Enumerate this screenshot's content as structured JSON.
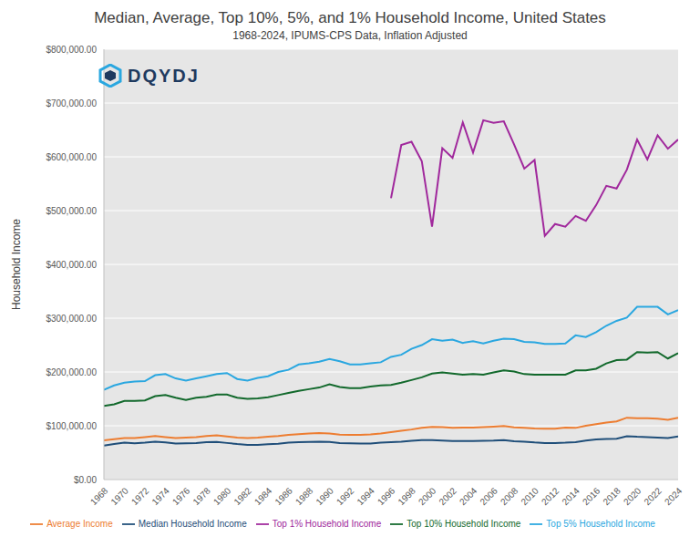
{
  "chart_data": {
    "type": "line",
    "title": "Median, Average, Top 10%, 5%, and 1% Household Income, United States",
    "subtitle": "1968-2024, IPUMS-CPS Data, Inflation Adjusted",
    "y_label": "Household Income",
    "annotations": [
      "DQYDJ"
    ],
    "x": [
      1968,
      1969,
      1970,
      1971,
      1972,
      1973,
      1974,
      1975,
      1976,
      1977,
      1978,
      1979,
      1980,
      1981,
      1982,
      1983,
      1984,
      1985,
      1986,
      1987,
      1988,
      1989,
      1990,
      1991,
      1992,
      1993,
      1994,
      1995,
      1996,
      1997,
      1998,
      1999,
      2000,
      2001,
      2002,
      2003,
      2004,
      2005,
      2006,
      2007,
      2008,
      2009,
      2010,
      2011,
      2012,
      2013,
      2014,
      2015,
      2016,
      2017,
      2018,
      2019,
      2020,
      2021,
      2022,
      2023,
      2024
    ],
    "xlim": [
      1968,
      2024
    ],
    "xticks": [
      1968,
      1970,
      1972,
      1974,
      1976,
      1978,
      1980,
      1982,
      1984,
      1986,
      1988,
      1990,
      1992,
      1994,
      1996,
      1998,
      2000,
      2002,
      2004,
      2006,
      2008,
      2010,
      2012,
      2014,
      2016,
      2018,
      2020,
      2022,
      2024
    ],
    "ylim": [
      0,
      800000
    ],
    "yticks": [
      {
        "value": 0,
        "label": "$0.00"
      },
      {
        "value": 100000,
        "label": "$100,000.00"
      },
      {
        "value": 200000,
        "label": "$200,000.00"
      },
      {
        "value": 300000,
        "label": "$300,000.00"
      },
      {
        "value": 400000,
        "label": "$400,000.00"
      },
      {
        "value": 500000,
        "label": "$500,000.00"
      },
      {
        "value": 600000,
        "label": "$600,000.00"
      },
      {
        "value": 700000,
        "label": "$700,000.00"
      },
      {
        "value": 800000,
        "label": "$800,000.00"
      }
    ],
    "grid": true,
    "legend": "bottom",
    "series": [
      {
        "name": "Median Household Income",
        "color": "#1f4e79",
        "values": [
          63000,
          66000,
          68500,
          67500,
          68500,
          70500,
          69000,
          67000,
          67500,
          68000,
          69500,
          70000,
          68000,
          66000,
          64500,
          64500,
          65500,
          66500,
          68500,
          69500,
          70000,
          70500,
          70000,
          68000,
          67500,
          67000,
          67000,
          68500,
          69500,
          70500,
          72000,
          73500,
          73500,
          72500,
          71500,
          71500,
          71500,
          72000,
          72500,
          73500,
          71000,
          70500,
          69000,
          68000,
          68000,
          68500,
          69500,
          72500,
          74500,
          75500,
          76000,
          80500,
          79500,
          79000,
          78000,
          77000,
          80000
        ]
      },
      {
        "name": "Average Income",
        "color": "#ed7d31",
        "values": [
          73000,
          75000,
          77000,
          77000,
          79000,
          81000,
          79000,
          77000,
          78000,
          79000,
          81000,
          82000,
          80000,
          78000,
          77000,
          78000,
          79500,
          81000,
          83000,
          84500,
          85500,
          86500,
          85500,
          83500,
          83000,
          83000,
          84000,
          85500,
          88000,
          90500,
          93000,
          96000,
          98000,
          97500,
          96000,
          96500,
          96500,
          97500,
          98500,
          99500,
          97000,
          96000,
          95000,
          94500,
          94500,
          96500,
          96000,
          100000,
          103000,
          106000,
          108000,
          115000,
          114000,
          114000,
          113000,
          111000,
          115000
        ]
      },
      {
        "name": "Top 10% Household Income",
        "color": "#12692c",
        "values": [
          137000,
          140000,
          146000,
          146000,
          147000,
          155000,
          157000,
          152000,
          148000,
          152000,
          154000,
          158000,
          158000,
          152000,
          150000,
          151000,
          153000,
          157000,
          161000,
          165000,
          168000,
          171000,
          177000,
          172000,
          170000,
          170000,
          173000,
          175000,
          176000,
          180000,
          185000,
          190000,
          197000,
          199000,
          197000,
          195000,
          196000,
          195000,
          199000,
          203000,
          201000,
          196000,
          195000,
          195000,
          195000,
          195000,
          203000,
          203000,
          206000,
          216000,
          222000,
          223000,
          237000,
          236000,
          237000,
          225000,
          235000
        ]
      },
      {
        "name": "Top 5% Household Income",
        "color": "#2aa7e0",
        "values": [
          167000,
          175000,
          180000,
          182000,
          183000,
          194000,
          196000,
          188000,
          184000,
          188000,
          192000,
          196000,
          198000,
          187000,
          184000,
          189000,
          192000,
          200000,
          204000,
          214000,
          216000,
          219000,
          224000,
          220000,
          214000,
          214000,
          216000,
          218000,
          228000,
          232000,
          243000,
          250000,
          261000,
          258000,
          260000,
          254000,
          257000,
          253000,
          258000,
          262000,
          261000,
          256000,
          255000,
          252000,
          252000,
          253000,
          268000,
          265000,
          274000,
          286000,
          295000,
          301000,
          321000,
          321000,
          321000,
          307000,
          315000
        ]
      },
      {
        "name": "Top 1% Household Income",
        "color": "#a0289c",
        "values": [
          null,
          null,
          null,
          null,
          null,
          null,
          null,
          null,
          null,
          null,
          null,
          null,
          null,
          null,
          null,
          null,
          null,
          null,
          null,
          null,
          null,
          null,
          null,
          null,
          null,
          null,
          null,
          null,
          523000,
          622000,
          628000,
          592000,
          470000,
          616000,
          598000,
          664000,
          608000,
          668000,
          663000,
          666000,
          623000,
          578000,
          594000,
          453000,
          475000,
          470000,
          490000,
          481000,
          510000,
          546000,
          541000,
          576000,
          632000,
          595000,
          640000,
          615000,
          632000
        ]
      }
    ]
  }
}
